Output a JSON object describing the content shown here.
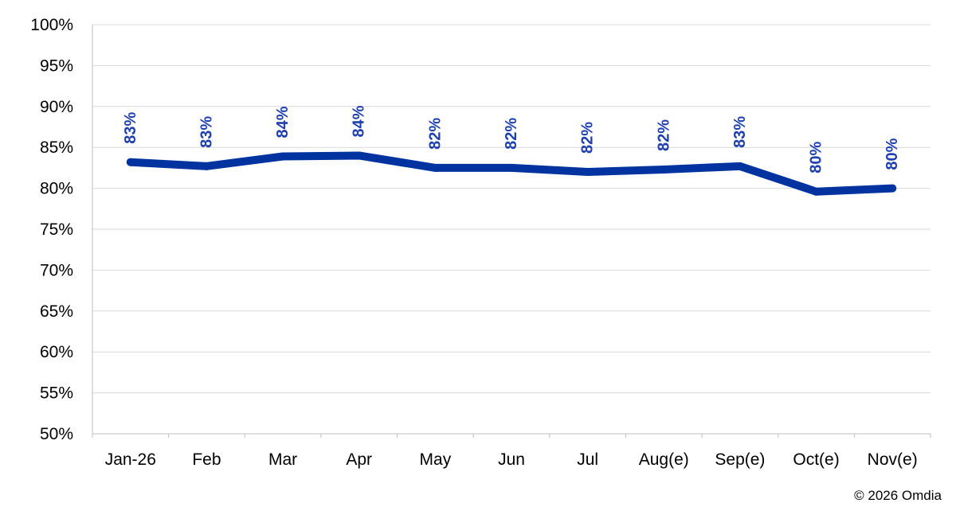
{
  "chart_data": {
    "type": "line",
    "categories": [
      "Jan-26",
      "Feb",
      "Mar",
      "Apr",
      "May",
      "Jun",
      "Jul",
      "Aug(e)",
      "Sep(e)",
      "Oct(e)",
      "Nov(e)"
    ],
    "series": [
      {
        "values": [
          83.2,
          82.7,
          83.9,
          84.0,
          82.5,
          82.5,
          82.0,
          82.3,
          82.7,
          79.6,
          80.0
        ],
        "labels": [
          "83%",
          "83%",
          "84%",
          "84%",
          "82%",
          "82%",
          "82%",
          "82%",
          "83%",
          "80%",
          "80%"
        ],
        "color": "#0033a0"
      }
    ],
    "y_ticks": [
      "50%",
      "55%",
      "60%",
      "65%",
      "70%",
      "75%",
      "80%",
      "85%",
      "90%",
      "95%",
      "100%"
    ],
    "ylim": [
      50,
      100
    ],
    "grid": true,
    "data_label_color": "#1f3fae"
  },
  "footer": {
    "copyright": "© 2026 Omdia"
  }
}
